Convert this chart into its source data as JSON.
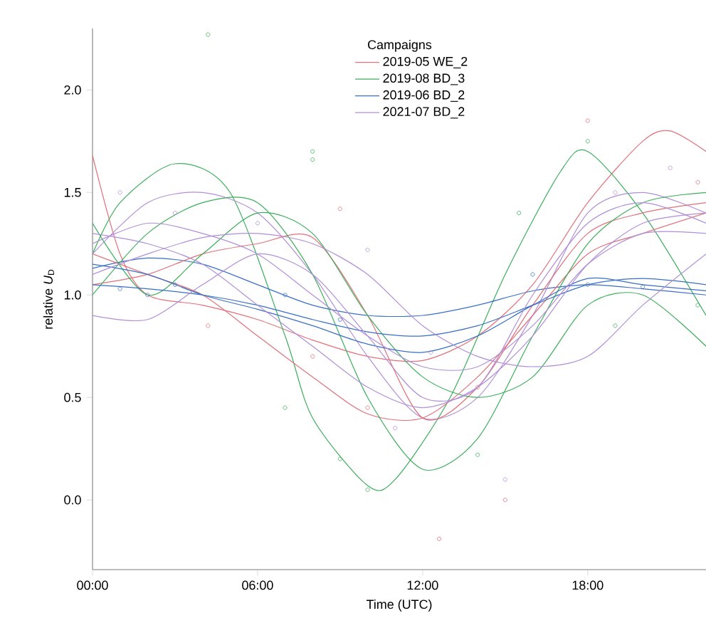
{
  "chart_data": {
    "type": "line",
    "xlabel": "Time (UTC)",
    "ylabel": "relative *U*$_{D}$",
    "legend_title": "Campaigns",
    "legend": "top",
    "grid": false,
    "xlim": [
      0,
      22.3
    ],
    "ylim": [
      -0.34,
      2.3
    ],
    "xticks": [
      {
        "value": 0,
        "label": "00:00"
      },
      {
        "value": 6,
        "label": "06:00"
      },
      {
        "value": 12,
        "label": "12:00"
      },
      {
        "value": 18,
        "label": "18:00"
      }
    ],
    "yticks": [
      {
        "value": 0,
        "label": "0.0"
      },
      {
        "value": 0.5,
        "label": "0.5"
      },
      {
        "value": 1,
        "label": "1.0"
      },
      {
        "value": 1.5,
        "label": "1.5"
      },
      {
        "value": 2,
        "label": "2.0"
      }
    ],
    "series": [
      {
        "name": "2019-05 WE_2",
        "color": "#e0707a",
        "x": [
          0,
          1,
          2,
          4,
          6,
          8,
          10,
          12,
          14,
          16,
          18,
          20,
          21,
          22.3
        ],
        "values": [
          1.68,
          1.2,
          1.0,
          0.95,
          0.88,
          0.78,
          0.7,
          0.68,
          0.8,
          1.05,
          1.45,
          1.75,
          1.8,
          1.7
        ]
      },
      {
        "name": "2019-08 BD_3",
        "color": "#3cae5c",
        "x": [
          0,
          1,
          3,
          5,
          7,
          8,
          10,
          11,
          13,
          15,
          17,
          18,
          20,
          22.3
        ],
        "values": [
          1.2,
          1.45,
          1.64,
          1.5,
          0.8,
          0.4,
          0.07,
          0.1,
          0.5,
          1.1,
          1.6,
          1.7,
          1.4,
          0.9
        ]
      },
      {
        "name": "2019-06 BD_2",
        "color": "#3a6fc4",
        "x": [
          0,
          2,
          4,
          6,
          8,
          10,
          12,
          14,
          16,
          18,
          20,
          22.3
        ],
        "values": [
          1.13,
          1.18,
          1.15,
          1.05,
          0.95,
          0.9,
          0.9,
          0.95,
          1.02,
          1.05,
          1.03,
          1.0
        ]
      },
      {
        "name": "2021-07 BD_2",
        "color": "#b08fd8",
        "x": [
          0,
          2,
          4,
          6,
          8,
          10,
          12,
          14,
          16,
          18,
          20,
          22.3
        ],
        "values": [
          1.2,
          1.45,
          1.5,
          1.4,
          1.1,
          0.7,
          0.4,
          0.5,
          0.9,
          1.4,
          1.5,
          1.4
        ]
      },
      {
        "type": "line",
        "color": "#e0707a",
        "x": [
          0,
          2,
          4,
          6,
          8,
          10,
          12,
          14,
          16,
          18,
          20,
          22.3
        ],
        "values": [
          1.05,
          1.1,
          1.2,
          1.25,
          1.28,
          0.9,
          0.4,
          0.55,
          0.95,
          1.3,
          1.4,
          1.45
        ]
      },
      {
        "type": "line",
        "color": "#e0707a",
        "x": [
          0,
          2,
          4,
          6,
          8,
          10,
          12,
          14,
          16,
          18,
          20,
          22.3
        ],
        "values": [
          1.2,
          1.1,
          1.0,
          0.8,
          0.6,
          0.42,
          0.4,
          0.6,
          0.9,
          1.2,
          1.3,
          1.4
        ]
      },
      {
        "type": "line",
        "color": "#3cae5c",
        "x": [
          0,
          2,
          4,
          6,
          8,
          10,
          12,
          14,
          16,
          18,
          20,
          22.3
        ],
        "values": [
          1.0,
          1.3,
          1.45,
          1.45,
          1.1,
          0.5,
          0.15,
          0.3,
          0.8,
          1.25,
          1.45,
          1.5
        ]
      },
      {
        "type": "line",
        "color": "#3cae5c",
        "x": [
          0,
          2,
          4,
          6,
          8,
          10,
          12,
          14,
          16,
          18,
          20,
          22.3
        ],
        "values": [
          1.35,
          1.0,
          1.2,
          1.4,
          1.3,
          0.9,
          0.6,
          0.5,
          0.6,
          0.95,
          1.0,
          0.75
        ]
      },
      {
        "type": "line",
        "color": "#3a6fc4",
        "x": [
          0,
          2,
          4,
          6,
          8,
          10,
          12,
          14,
          16,
          18,
          20,
          22.3
        ],
        "values": [
          1.05,
          1.03,
          1.0,
          0.95,
          0.88,
          0.82,
          0.8,
          0.85,
          0.95,
          1.05,
          1.08,
          1.05
        ]
      },
      {
        "type": "line",
        "color": "#3a6fc4",
        "x": [
          0,
          2,
          4,
          6,
          8,
          10,
          12,
          14,
          16,
          18,
          20,
          22.3
        ],
        "values": [
          1.15,
          1.1,
          1.0,
          0.93,
          0.85,
          0.76,
          0.72,
          0.8,
          0.95,
          1.08,
          1.05,
          1.02
        ]
      },
      {
        "type": "line",
        "color": "#b08fd8",
        "x": [
          0,
          2,
          4,
          6,
          8,
          10,
          12,
          14,
          16,
          18,
          20,
          22.3
        ],
        "values": [
          0.9,
          0.88,
          1.05,
          1.2,
          1.1,
          0.8,
          0.5,
          0.55,
          1.0,
          1.35,
          1.45,
          1.35
        ]
      },
      {
        "type": "line",
        "color": "#b08fd8",
        "x": [
          0,
          2,
          4,
          6,
          8,
          10,
          12,
          14,
          16,
          18,
          20,
          22.3
        ],
        "values": [
          1.3,
          1.25,
          1.15,
          0.95,
          0.75,
          0.55,
          0.45,
          0.55,
          0.8,
          1.15,
          1.35,
          1.4
        ]
      },
      {
        "type": "line",
        "color": "#b08fd8",
        "x": [
          0,
          2,
          4,
          6,
          8,
          10,
          12,
          14,
          16,
          18,
          20,
          22.3
        ],
        "values": [
          1.1,
          1.2,
          1.28,
          1.3,
          1.25,
          1.1,
          0.85,
          0.7,
          0.65,
          0.7,
          0.95,
          1.2
        ]
      },
      {
        "type": "line",
        "color": "#b08fd8",
        "x": [
          0,
          2,
          4,
          6,
          8,
          10,
          12,
          14,
          16,
          18,
          20,
          22.3
        ],
        "values": [
          1.25,
          1.35,
          1.3,
          1.2,
          1.0,
          0.8,
          0.65,
          0.65,
          0.85,
          1.15,
          1.3,
          1.3
        ]
      },
      {
        "type": "scatter",
        "color": "#e0707a",
        "x": [
          18,
          9,
          12.6,
          15,
          10,
          8,
          14,
          4.2,
          22
        ],
        "values": [
          1.85,
          1.42,
          -0.19,
          0.0,
          0.45,
          0.7,
          0.55,
          0.85,
          1.55
        ]
      },
      {
        "type": "scatter",
        "color": "#3cae5c",
        "x": [
          4.2,
          8,
          8,
          7,
          9,
          10,
          18,
          15.5,
          19,
          22,
          14
        ],
        "values": [
          2.27,
          1.7,
          1.66,
          0.45,
          0.2,
          0.05,
          1.75,
          1.4,
          0.85,
          0.95,
          0.22
        ]
      },
      {
        "type": "scatter",
        "color": "#3a6fc4",
        "x": [
          1,
          2,
          3,
          7,
          9,
          18,
          20,
          16
        ],
        "values": [
          1.03,
          1.0,
          1.05,
          1.0,
          0.88,
          1.05,
          1.04,
          1.1
        ]
      },
      {
        "type": "scatter",
        "color": "#b08fd8",
        "x": [
          1,
          3,
          6,
          10,
          12.3,
          11,
          15,
          19,
          21
        ],
        "values": [
          1.5,
          1.4,
          1.35,
          1.22,
          0.72,
          0.35,
          0.1,
          1.5,
          1.62
        ]
      }
    ]
  }
}
